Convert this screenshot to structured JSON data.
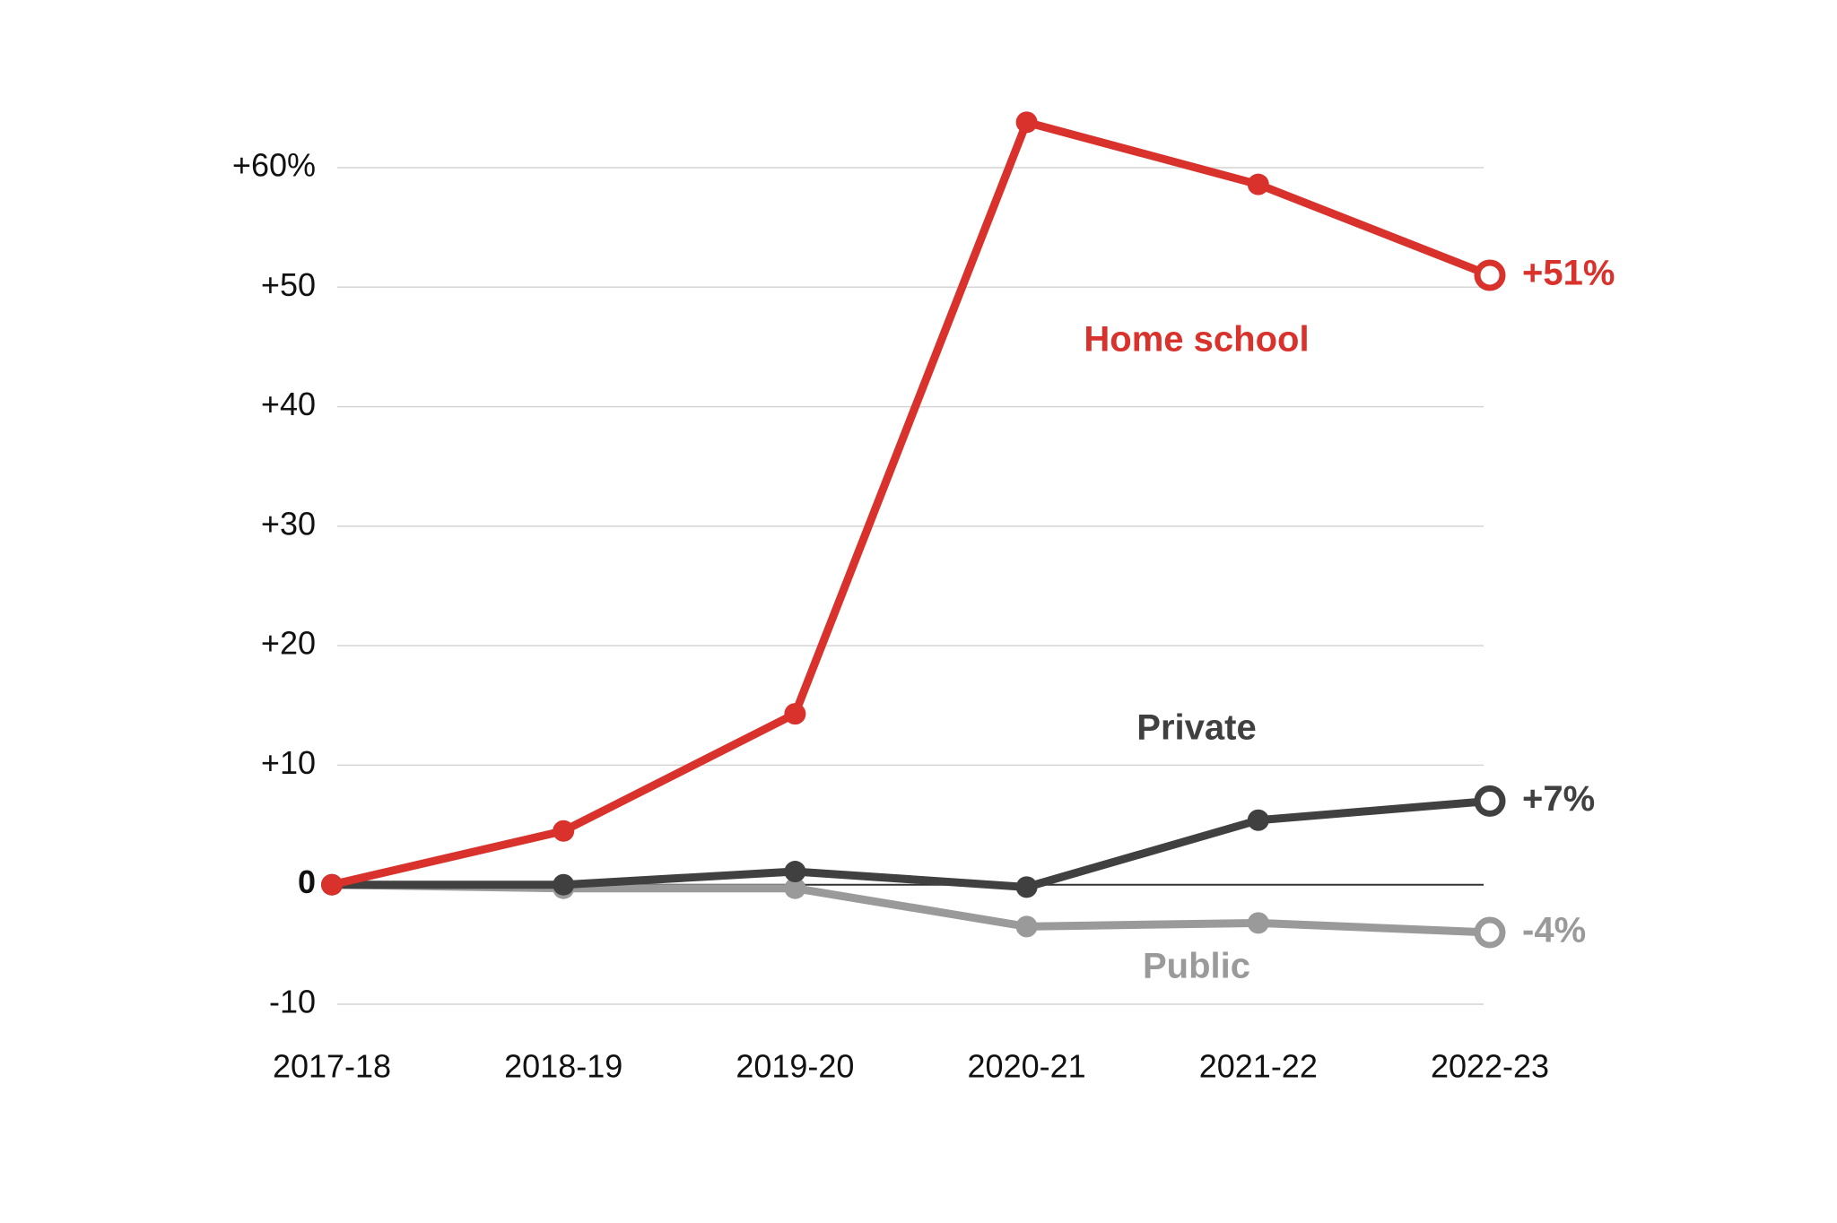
{
  "chart_data": {
    "type": "line",
    "categories": [
      "2017-18",
      "2018-19",
      "2019-20",
      "2020-21",
      "2021-22",
      "2022-23"
    ],
    "series": [
      {
        "name": "Public",
        "color": "#9a9a9a",
        "values": [
          0,
          -0.3,
          -0.3,
          -3.5,
          -3.2,
          -4
        ],
        "value_labels": [
          null,
          null,
          null,
          null,
          null,
          "-4%"
        ]
      },
      {
        "name": "Private",
        "color": "#404040",
        "values": [
          0,
          0,
          1.1,
          -0.2,
          5.4,
          7
        ],
        "value_labels": [
          null,
          null,
          null,
          null,
          null,
          "+7%"
        ]
      },
      {
        "name": "Home school",
        "color": "#d9312b",
        "values": [
          0,
          4.5,
          14.3,
          63.8,
          58.6,
          51
        ],
        "value_labels": [
          null,
          null,
          null,
          null,
          null,
          "+51%"
        ]
      }
    ],
    "ylim": [
      -10,
      60
    ],
    "yticks": [
      {
        "value": -10,
        "label": "-10"
      },
      0,
      {
        "value": 10,
        "label": "+10"
      },
      {
        "value": 20,
        "label": "+20"
      },
      {
        "value": 30,
        "label": "+30"
      },
      {
        "value": 40,
        "label": "+40"
      },
      {
        "value": 50,
        "label": "+50"
      },
      {
        "value": 60,
        "label": "+60%"
      }
    ],
    "grid": true
  }
}
